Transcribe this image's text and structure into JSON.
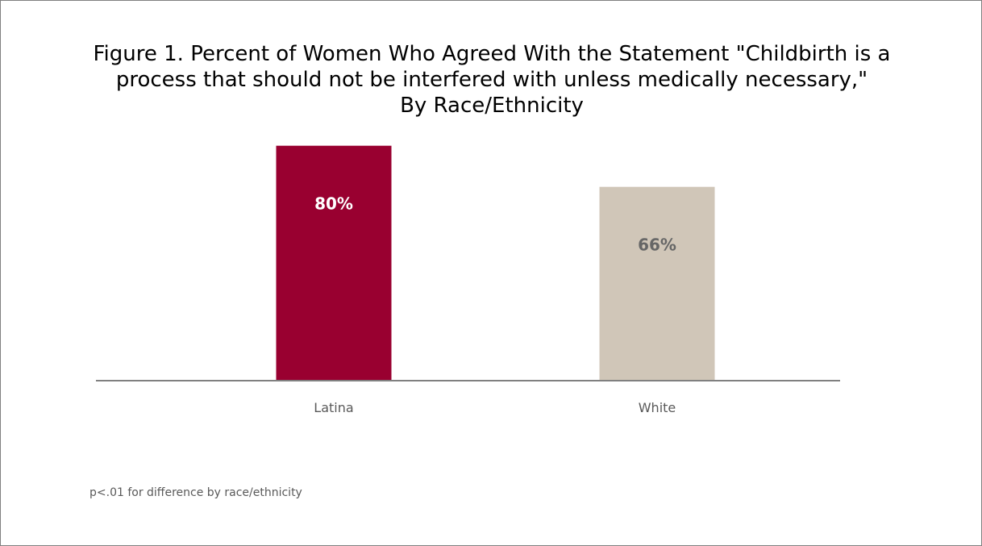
{
  "chart_data": {
    "type": "bar",
    "title_lines": [
      "Figure 1. Percent of Women Who Agreed With the Statement \"Childbirth is a",
      "process that should not be interfered with unless medically necessary,\"",
      "By Race/Ethnicity"
    ],
    "categories": [
      "Latina",
      "White"
    ],
    "values": [
      80,
      66
    ],
    "data_labels": [
      "80%",
      "66%"
    ],
    "bar_colors": [
      "#990030",
      "#d0c6b8"
    ],
    "label_colors": [
      "#ffffff",
      "#666666"
    ],
    "axis_color": "#808080",
    "ylim": [
      0,
      92
    ],
    "grid": false,
    "legend": "none",
    "xlabel": "",
    "ylabel": ""
  },
  "footnote": "p<.01 for difference by race/ethnicity"
}
